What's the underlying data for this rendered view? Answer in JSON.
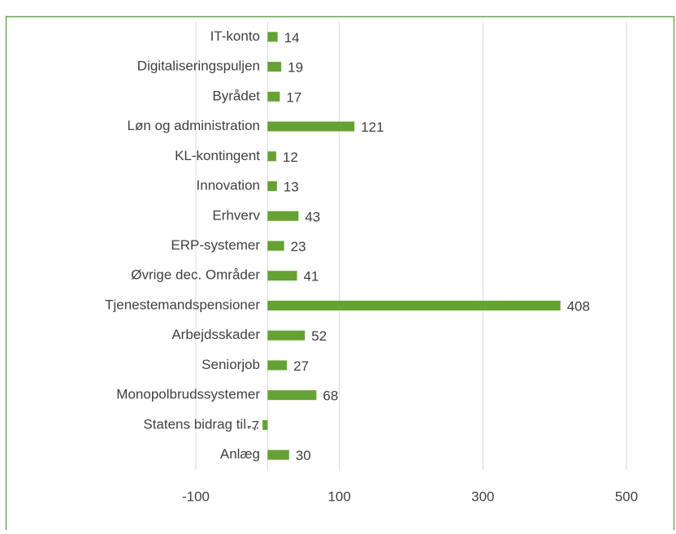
{
  "chart_data": {
    "type": "barh",
    "categories": [
      "IT-konto",
      "Digitaliseringspuljen",
      "Byrådet",
      "Løn og administration",
      "KL-kontingent",
      "Innovation",
      "Erhverv",
      "ERP-systemer",
      "Øvrige dec. Områder",
      "Tjenestemandspensioner",
      "Arbejdsskader",
      "Seniorjob",
      "Monopolbrudssystemer",
      "Statens bidrag til…",
      "Anlæg"
    ],
    "values": [
      14,
      19,
      17,
      121,
      12,
      13,
      43,
      23,
      41,
      408,
      52,
      27,
      68,
      -7,
      30
    ],
    "color": "#65a233",
    "xlim": [
      -100,
      500
    ],
    "xticks": [
      -100,
      100,
      300,
      500
    ],
    "grid": true
  }
}
